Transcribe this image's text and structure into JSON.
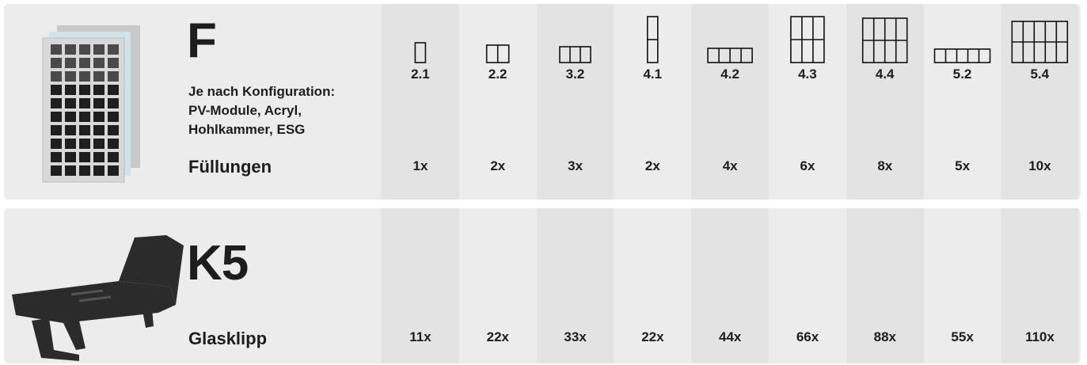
{
  "configurations": [
    "2.1",
    "2.2",
    "3.2",
    "4.1",
    "4.2",
    "4.3",
    "4.4",
    "5.2",
    "5.4"
  ],
  "products": [
    {
      "code": "F",
      "description": [
        "Je nach Konfiguration:",
        "PV-Module, Acryl,",
        "Hohlkammer, ESG"
      ],
      "label": "Füllungen",
      "quantities": [
        "1x",
        "2x",
        "3x",
        "2x",
        "4x",
        "6x",
        "8x",
        "5x",
        "10x"
      ]
    },
    {
      "code": "K5",
      "label": "Glasklipp",
      "quantities": [
        "11x",
        "22x",
        "33x",
        "22x",
        "44x",
        "66x",
        "88x",
        "55x",
        "110x"
      ]
    }
  ]
}
